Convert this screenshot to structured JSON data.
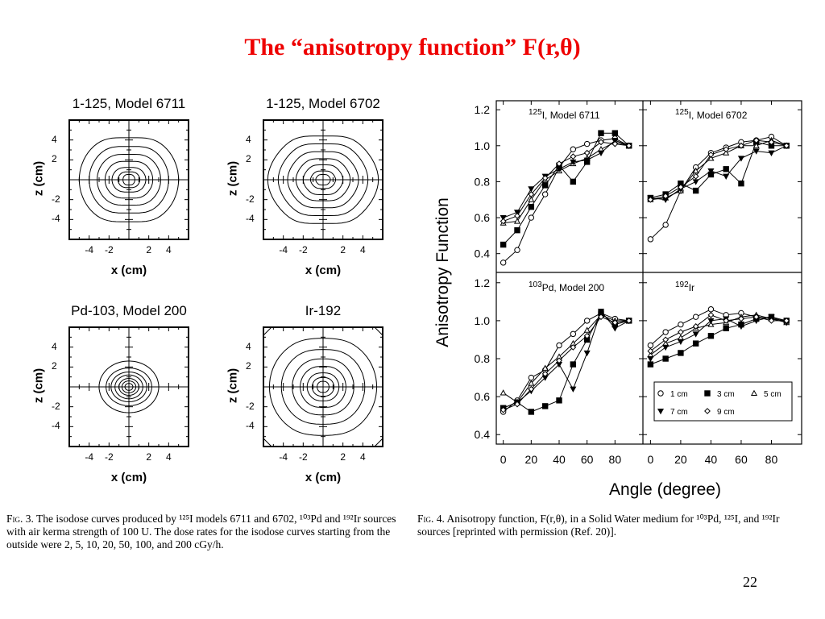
{
  "slide": {
    "title": "The “anisotropy function” F(r,θ)",
    "page_number": "22"
  },
  "isodose": {
    "panels": [
      {
        "title": "1-125, Model 6711",
        "shape": "6711"
      },
      {
        "title": "1-125, Model 6702",
        "shape": "6702"
      },
      {
        "title": "Pd-103, Model 200",
        "shape": "pd"
      },
      {
        "title": "Ir-192",
        "shape": "ir"
      }
    ],
    "xlabel": "x (cm)",
    "ylabel": "z (cm)",
    "x_ticks": [
      "-4",
      "-2",
      "2",
      "4"
    ],
    "z_ticks": [
      "4",
      "2",
      "-2",
      "-4"
    ],
    "dose_rates": [
      2,
      5,
      10,
      20,
      50,
      100,
      200
    ],
    "caption": {
      "fig": "Fig. 3.",
      "text": "The isodose curves produced by ¹²⁵I models 6711 and 6702, ¹⁰³Pd and ¹⁹²Ir sources with air kerma strength of 100 U. The dose rates for the isodose curves starting from the outside were 2, 5, 10, 20, 50, 100, and 200 cGy/h."
    }
  },
  "anisotropy": {
    "caption": {
      "fig": "Fig. 4.",
      "text": "Anisotropy function, F(r,θ), in a Solid Water medium for ¹⁰³Pd, ¹²⁵I, and ¹⁹²Ir sources [reprinted with permission (Ref. 20)]."
    }
  },
  "chart_data": {
    "type": "line",
    "ylabel": "Anisotropy Function",
    "xlabel": "Angle (degree)",
    "xlim": [
      -5,
      100
    ],
    "ylim_top": [
      0.3,
      1.25
    ],
    "ylim_bottom": [
      0.35,
      1.25
    ],
    "x_ticks": [
      0,
      20,
      40,
      60,
      80
    ],
    "y_ticks_top": [
      "0.4",
      "0.6",
      "0.8",
      "1.0",
      "1.2"
    ],
    "y_ticks_bottom": [
      "0.4",
      "0.6",
      "0.8",
      "1.0",
      "1.2"
    ],
    "legend": [
      {
        "label": "1 cm",
        "marker": "open-circle"
      },
      {
        "label": "3 cm",
        "marker": "filled-square"
      },
      {
        "label": "5 cm",
        "marker": "open-triangle"
      },
      {
        "label": "7 cm",
        "marker": "filled-triangle-down"
      },
      {
        "label": "9 cm",
        "marker": "open-diamond"
      }
    ],
    "legend_position": "lower-right",
    "panels": [
      {
        "label_sup": "125",
        "label_main": "I, Model 6711",
        "row": "top",
        "col": 0,
        "series": [
          {
            "name": "1 cm",
            "points": [
              [
                0,
                0.35
              ],
              [
                10,
                0.42
              ],
              [
                20,
                0.6
              ],
              [
                30,
                0.73
              ],
              [
                40,
                0.88
              ],
              [
                50,
                0.98
              ],
              [
                60,
                1.01
              ],
              [
                70,
                1.03
              ],
              [
                80,
                1.04
              ],
              [
                90,
                1.0
              ]
            ]
          },
          {
            "name": "3 cm",
            "points": [
              [
                0,
                0.45
              ],
              [
                10,
                0.53
              ],
              [
                20,
                0.66
              ],
              [
                30,
                0.78
              ],
              [
                40,
                0.89
              ],
              [
                50,
                0.8
              ],
              [
                60,
                0.91
              ],
              [
                70,
                1.07
              ],
              [
                80,
                1.07
              ],
              [
                90,
                1.0
              ]
            ]
          },
          {
            "name": "5 cm",
            "points": [
              [
                0,
                0.57
              ],
              [
                10,
                0.58
              ],
              [
                20,
                0.7
              ],
              [
                30,
                0.81
              ],
              [
                40,
                0.86
              ],
              [
                50,
                0.9
              ],
              [
                60,
                0.93
              ],
              [
                70,
                0.98
              ],
              [
                80,
                1.02
              ],
              [
                90,
                1.0
              ]
            ]
          },
          {
            "name": "7 cm",
            "points": [
              [
                0,
                0.6
              ],
              [
                10,
                0.63
              ],
              [
                20,
                0.76
              ],
              [
                30,
                0.83
              ],
              [
                40,
                0.87
              ],
              [
                50,
                0.91
              ],
              [
                60,
                0.92
              ],
              [
                70,
                0.96
              ],
              [
                80,
                1.03
              ],
              [
                90,
                1.0
              ]
            ]
          },
          {
            "name": "9 cm",
            "points": [
              [
                0,
                0.58
              ],
              [
                10,
                0.61
              ],
              [
                20,
                0.73
              ],
              [
                30,
                0.82
              ],
              [
                40,
                0.9
              ],
              [
                50,
                0.94
              ],
              [
                60,
                0.96
              ],
              [
                70,
                1.02
              ],
              [
                80,
                1.01
              ],
              [
                90,
                1.0
              ]
            ]
          }
        ]
      },
      {
        "label_sup": "125",
        "label_main": "I, Model 6702",
        "row": "top",
        "col": 1,
        "series": [
          {
            "name": "1 cm",
            "points": [
              [
                0,
                0.48
              ],
              [
                10,
                0.56
              ],
              [
                20,
                0.75
              ],
              [
                30,
                0.88
              ],
              [
                40,
                0.96
              ],
              [
                50,
                0.99
              ],
              [
                60,
                1.02
              ],
              [
                70,
                1.03
              ],
              [
                80,
                1.05
              ],
              [
                90,
                1.0
              ]
            ]
          },
          {
            "name": "3 cm",
            "points": [
              [
                0,
                0.71
              ],
              [
                10,
                0.73
              ],
              [
                20,
                0.79
              ],
              [
                30,
                0.75
              ],
              [
                40,
                0.84
              ],
              [
                50,
                0.87
              ],
              [
                60,
                0.79
              ],
              [
                70,
                1.02
              ],
              [
                80,
                1.0
              ],
              [
                90,
                1.0
              ]
            ]
          },
          {
            "name": "5 cm",
            "points": [
              [
                0,
                0.7
              ],
              [
                10,
                0.71
              ],
              [
                20,
                0.75
              ],
              [
                30,
                0.86
              ],
              [
                40,
                0.93
              ],
              [
                50,
                0.96
              ],
              [
                60,
                1.0
              ],
              [
                70,
                1.0
              ],
              [
                80,
                1.03
              ],
              [
                90,
                1.0
              ]
            ]
          },
          {
            "name": "7 cm",
            "points": [
              [
                0,
                0.71
              ],
              [
                10,
                0.7
              ],
              [
                20,
                0.76
              ],
              [
                30,
                0.8
              ],
              [
                40,
                0.86
              ],
              [
                50,
                0.83
              ],
              [
                60,
                0.93
              ],
              [
                70,
                0.97
              ],
              [
                80,
                0.96
              ],
              [
                90,
                1.0
              ]
            ]
          },
          {
            "name": "9 cm",
            "points": [
              [
                0,
                0.7
              ],
              [
                10,
                0.72
              ],
              [
                20,
                0.77
              ],
              [
                30,
                0.83
              ],
              [
                40,
                0.95
              ],
              [
                50,
                0.98
              ],
              [
                60,
                1.0
              ],
              [
                70,
                1.03
              ],
              [
                80,
                1.02
              ],
              [
                90,
                1.0
              ]
            ]
          }
        ]
      },
      {
        "label_sup": "103",
        "label_main": "Pd, Model 200",
        "row": "bottom",
        "col": 0,
        "series": [
          {
            "name": "1 cm",
            "points": [
              [
                0,
                0.52
              ],
              [
                10,
                0.58
              ],
              [
                20,
                0.7
              ],
              [
                30,
                0.74
              ],
              [
                40,
                0.87
              ],
              [
                50,
                0.93
              ],
              [
                60,
                1.0
              ],
              [
                70,
                1.04
              ],
              [
                80,
                1.01
              ],
              [
                90,
                1.0
              ]
            ]
          },
          {
            "name": "3 cm",
            "points": [
              [
                0,
                0.54
              ],
              [
                10,
                0.57
              ],
              [
                20,
                0.52
              ],
              [
                30,
                0.55
              ],
              [
                40,
                0.58
              ],
              [
                50,
                0.77
              ],
              [
                60,
                0.9
              ],
              [
                70,
                1.04
              ],
              [
                80,
                0.98
              ],
              [
                90,
                1.0
              ]
            ]
          },
          {
            "name": "5 cm",
            "points": [
              [
                0,
                0.62
              ],
              [
                10,
                0.57
              ],
              [
                20,
                0.67
              ],
              [
                30,
                0.75
              ],
              [
                40,
                0.81
              ],
              [
                50,
                0.88
              ],
              [
                60,
                0.95
              ],
              [
                70,
                1.03
              ],
              [
                80,
                1.0
              ],
              [
                90,
                1.0
              ]
            ]
          },
          {
            "name": "7 cm",
            "points": [
              [
                0,
                0.54
              ],
              [
                10,
                0.57
              ],
              [
                20,
                0.63
              ],
              [
                30,
                0.7
              ],
              [
                40,
                0.77
              ],
              [
                50,
                0.64
              ],
              [
                60,
                0.83
              ],
              [
                70,
                1.05
              ],
              [
                80,
                0.96
              ],
              [
                90,
                1.0
              ]
            ]
          },
          {
            "name": "9 cm",
            "points": [
              [
                0,
                0.53
              ],
              [
                10,
                0.56
              ],
              [
                20,
                0.64
              ],
              [
                30,
                0.72
              ],
              [
                40,
                0.79
              ],
              [
                50,
                0.86
              ],
              [
                60,
                0.92
              ],
              [
                70,
                1.02
              ],
              [
                80,
                0.99
              ],
              [
                90,
                1.0
              ]
            ]
          }
        ]
      },
      {
        "label_sup": "192",
        "label_main": "Ir",
        "row": "bottom",
        "col": 1,
        "series": [
          {
            "name": "1 cm",
            "points": [
              [
                0,
                0.87
              ],
              [
                10,
                0.94
              ],
              [
                20,
                0.98
              ],
              [
                30,
                1.02
              ],
              [
                40,
                1.06
              ],
              [
                50,
                1.03
              ],
              [
                60,
                1.04
              ],
              [
                70,
                1.02
              ],
              [
                80,
                1.01
              ],
              [
                90,
                1.0
              ]
            ]
          },
          {
            "name": "3 cm",
            "points": [
              [
                0,
                0.77
              ],
              [
                10,
                0.8
              ],
              [
                20,
                0.83
              ],
              [
                30,
                0.88
              ],
              [
                40,
                0.92
              ],
              [
                50,
                0.96
              ],
              [
                60,
                0.98
              ],
              [
                70,
                1.01
              ],
              [
                80,
                1.02
              ],
              [
                90,
                1.0
              ]
            ]
          },
          {
            "name": "5 cm",
            "points": [
              [
                0,
                0.82
              ],
              [
                10,
                0.88
              ],
              [
                20,
                0.91
              ],
              [
                30,
                0.96
              ],
              [
                40,
                0.98
              ],
              [
                50,
                0.99
              ],
              [
                60,
                1.02
              ],
              [
                70,
                1.03
              ],
              [
                80,
                1.01
              ],
              [
                90,
                0.99
              ]
            ]
          },
          {
            "name": "7 cm",
            "points": [
              [
                0,
                0.8
              ],
              [
                10,
                0.86
              ],
              [
                20,
                0.89
              ],
              [
                30,
                0.93
              ],
              [
                40,
                1.0
              ],
              [
                50,
                1.01
              ],
              [
                60,
                0.97
              ],
              [
                70,
                1.0
              ],
              [
                80,
                1.02
              ],
              [
                90,
                0.99
              ]
            ]
          },
          {
            "name": "9 cm",
            "points": [
              [
                0,
                0.84
              ],
              [
                10,
                0.9
              ],
              [
                20,
                0.94
              ],
              [
                30,
                0.97
              ],
              [
                40,
                1.03
              ],
              [
                50,
                1.0
              ],
              [
                60,
                1.01
              ],
              [
                70,
                1.02
              ],
              [
                80,
                1.0
              ],
              [
                90,
                1.0
              ]
            ]
          }
        ]
      }
    ]
  }
}
